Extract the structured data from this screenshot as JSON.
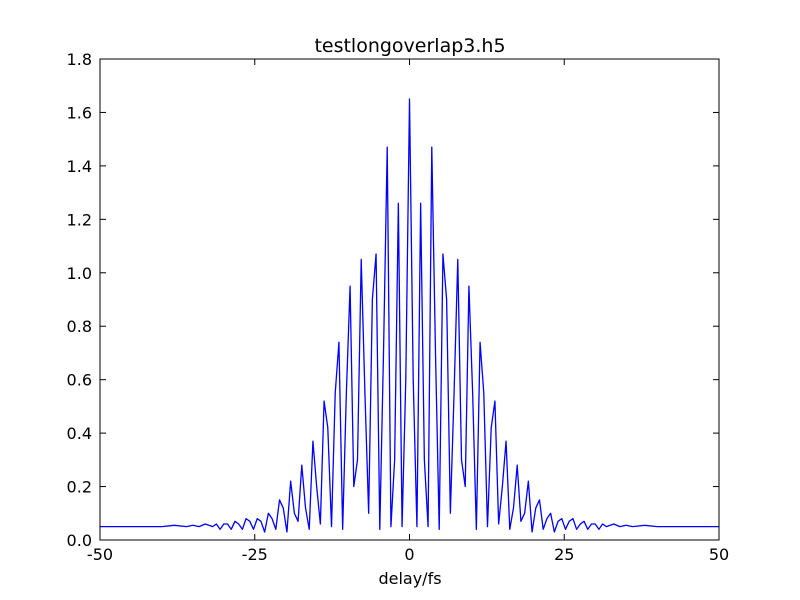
{
  "chart_data": {
    "type": "line",
    "title": "testlongoverlap3.h5",
    "x_label": "delay/fs",
    "x": [
      -50,
      -45,
      -42,
      -40,
      -38,
      -36,
      -35,
      -34,
      -33,
      -31.8,
      -31.2,
      -30.6,
      -30,
      -29.4,
      -28.8,
      -28.2,
      -27.6,
      -27,
      -26.4,
      -25.8,
      -25.2,
      -24.6,
      -24,
      -23.4,
      -22.8,
      -22.2,
      -21.6,
      -21,
      -20.4,
      -19.8,
      -19.2,
      -18.6,
      -18,
      -17.4,
      -16.8,
      -16.2,
      -15.6,
      -15,
      -14.4,
      -13.8,
      -13.2,
      -12.6,
      -12,
      -11.4,
      -10.8,
      -10.2,
      -9.6,
      -9,
      -8.4,
      -7.8,
      -7.2,
      -6.6,
      -6,
      -5.4,
      -4.8,
      -4.2,
      -3.6,
      -3,
      -2.4,
      -1.8,
      -1.2,
      -0.6,
      0,
      0.6,
      1.2,
      1.8,
      2.4,
      3,
      3.6,
      4.2,
      4.8,
      5.4,
      6,
      6.6,
      7.2,
      7.8,
      8.4,
      9,
      9.6,
      10.2,
      10.8,
      11.4,
      12,
      12.6,
      13.2,
      13.8,
      14.4,
      15,
      15.6,
      16.2,
      16.8,
      17.4,
      18,
      18.6,
      19.2,
      19.8,
      20.4,
      21,
      21.6,
      22.2,
      22.8,
      23.4,
      24,
      24.6,
      25.2,
      25.8,
      26.4,
      27,
      27.6,
      28.2,
      28.8,
      29.4,
      30,
      30.6,
      31.2,
      31.8,
      33,
      34,
      35,
      36,
      38,
      40,
      42,
      45,
      50
    ],
    "series": [
      {
        "color": "#0000ff",
        "values": [
          0.05,
          0.05,
          0.05,
          0.05,
          0.055,
          0.05,
          0.055,
          0.05,
          0.06,
          0.05,
          0.06,
          0.04,
          0.06,
          0.06,
          0.04,
          0.07,
          0.06,
          0.04,
          0.08,
          0.07,
          0.04,
          0.08,
          0.07,
          0.03,
          0.1,
          0.08,
          0.04,
          0.15,
          0.12,
          0.03,
          0.22,
          0.1,
          0.07,
          0.28,
          0.12,
          0.04,
          0.37,
          0.2,
          0.06,
          0.52,
          0.42,
          0.05,
          0.55,
          0.74,
          0.04,
          0.55,
          0.95,
          0.2,
          0.3,
          1.05,
          0.55,
          0.1,
          0.9,
          1.07,
          0.04,
          0.7,
          1.47,
          0.05,
          0.3,
          1.26,
          0.05,
          0.6,
          1.65,
          0.6,
          0.05,
          1.26,
          0.3,
          0.05,
          1.47,
          0.7,
          0.04,
          1.07,
          0.9,
          0.1,
          0.55,
          1.05,
          0.3,
          0.2,
          0.95,
          0.55,
          0.04,
          0.74,
          0.55,
          0.05,
          0.42,
          0.52,
          0.06,
          0.2,
          0.37,
          0.04,
          0.12,
          0.28,
          0.07,
          0.1,
          0.22,
          0.03,
          0.12,
          0.15,
          0.04,
          0.08,
          0.1,
          0.03,
          0.07,
          0.08,
          0.04,
          0.07,
          0.08,
          0.04,
          0.06,
          0.07,
          0.04,
          0.06,
          0.06,
          0.04,
          0.06,
          0.05,
          0.06,
          0.05,
          0.055,
          0.05,
          0.055,
          0.05,
          0.05,
          0.05,
          0.05
        ]
      }
    ],
    "xlim": [
      -50,
      50
    ],
    "xticks": [
      -50,
      -25,
      0,
      25,
      50
    ],
    "ylim": [
      0,
      1.8
    ],
    "yticks": [
      {
        "value": 0,
        "label": "0.0"
      },
      0.2,
      0.4,
      0.6,
      0.8,
      {
        "value": 1,
        "label": "1.0"
      },
      1.2,
      1.4,
      1.6,
      1.8
    ]
  }
}
